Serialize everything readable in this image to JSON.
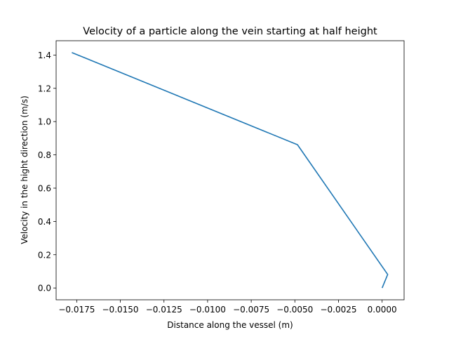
{
  "chart_data": {
    "type": "line",
    "title": "Velocity of a particle along the vein starting at half height",
    "xlabel": "Distance along the vessel (m)",
    "ylabel": "Velocity in the hight direction (m/s)",
    "xlim": [
      -0.01868,
      0.00126
    ],
    "ylim": [
      -0.071,
      1.486
    ],
    "xticks": [
      -0.0175,
      -0.015,
      -0.0125,
      -0.01,
      -0.0075,
      -0.005,
      -0.0025,
      0.0
    ],
    "xtick_labels": [
      "−0.0175",
      "−0.0150",
      "−0.0125",
      "−0.0100",
      "−0.0075",
      "−0.0050",
      "−0.0025",
      "0.0000"
    ],
    "yticks": [
      0.0,
      0.2,
      0.4,
      0.6,
      0.8,
      1.0,
      1.2,
      1.4
    ],
    "ytick_labels": [
      "0.0",
      "0.2",
      "0.4",
      "0.6",
      "0.8",
      "1.0",
      "1.2",
      "1.4"
    ],
    "grid": false,
    "series": [
      {
        "color": "#1f77b4",
        "x": [
          0.0,
          0.00032,
          -0.00485,
          -0.01778
        ],
        "y": [
          0.0,
          0.081,
          0.861,
          1.415
        ]
      }
    ]
  }
}
